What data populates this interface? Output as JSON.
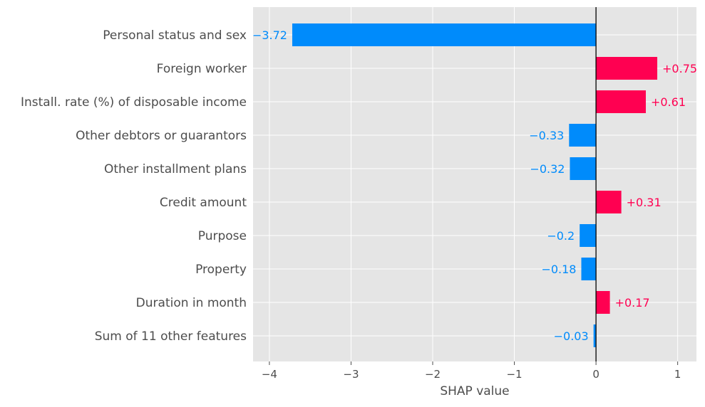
{
  "chart_data": {
    "type": "bar",
    "orientation": "horizontal",
    "title": "",
    "xlabel": "SHAP value",
    "ylabel": "",
    "xlim": [
      -4.2,
      1.23
    ],
    "xticks": [
      -4,
      -3,
      -2,
      -1,
      0,
      1
    ],
    "xtick_labels": [
      "−4",
      "−3",
      "−2",
      "−1",
      "0",
      "1"
    ],
    "grid": true,
    "categories": [
      "Personal status and sex",
      "Foreign worker",
      "Install. rate (%) of disposable income",
      "Other debtors or guarantors",
      "Other installment plans",
      "Credit amount",
      "Purpose",
      "Property",
      "Duration in month",
      "Sum of 11 other features"
    ],
    "values": [
      -3.72,
      0.75,
      0.61,
      -0.33,
      -0.32,
      0.31,
      -0.2,
      -0.18,
      0.17,
      -0.03
    ],
    "value_labels": [
      "−3.72",
      "+0.75",
      "+0.61",
      "−0.33",
      "−0.32",
      "+0.31",
      "−0.2",
      "−0.18",
      "+0.17",
      "−0.03"
    ],
    "colors": {
      "positive": "#ff0051",
      "negative": "#008bfb",
      "background": "#e5e5e5",
      "grid": "#ffffff",
      "zero_line": "#000000",
      "text": "#4d4d4d"
    }
  }
}
